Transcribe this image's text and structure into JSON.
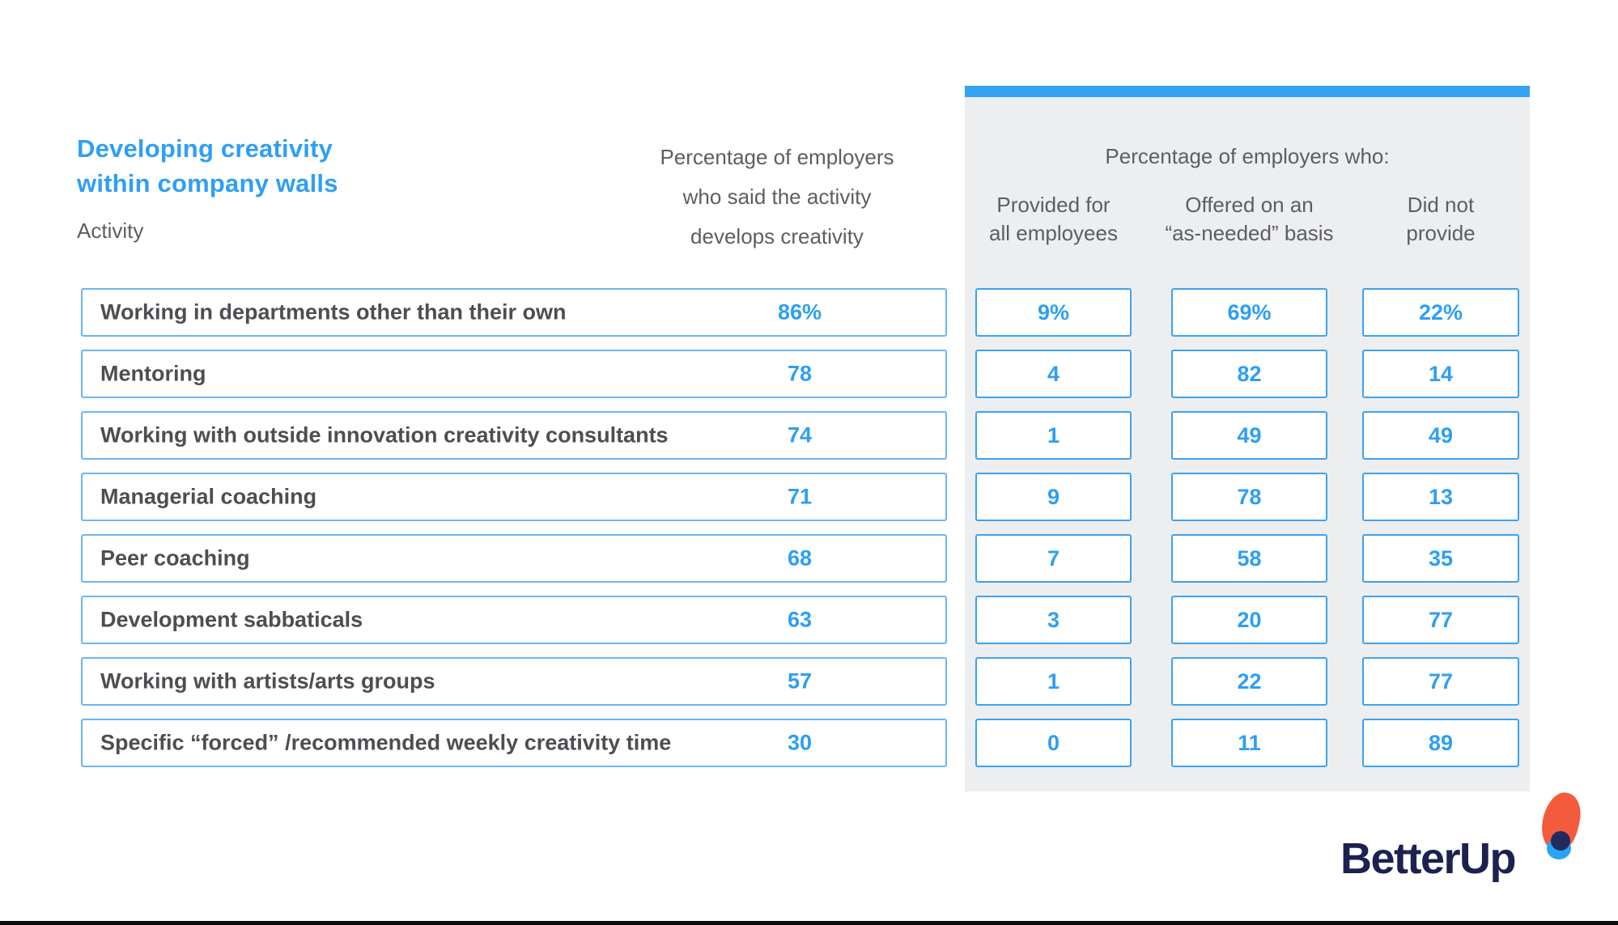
{
  "title": {
    "line1": "Developing creativity",
    "line2": "within company walls"
  },
  "labels": {
    "activity": "Activity"
  },
  "develops_header": {
    "line1": "Percentage of employers",
    "line2": "who said the activity",
    "line3": "develops creativity"
  },
  "panel": {
    "header": "Percentage of employers who:",
    "columns": [
      {
        "line1": "Provided for",
        "line2": "all employees"
      },
      {
        "line1": "Offered on an",
        "line2": "“as-needed” basis"
      },
      {
        "line1": "Did not",
        "line2": "provide"
      }
    ]
  },
  "rows": [
    {
      "activity": "Working in departments other than their own",
      "develops": "86%",
      "provided": "9%",
      "offered": "69%",
      "not_provided": "22%"
    },
    {
      "activity": "Mentoring",
      "develops": "78",
      "provided": "4",
      "offered": "82",
      "not_provided": "14"
    },
    {
      "activity": "Working with outside innovation creativity consultants",
      "develops": "74",
      "provided": "1",
      "offered": "49",
      "not_provided": "49"
    },
    {
      "activity": "Managerial coaching",
      "develops": "71",
      "provided": "9",
      "offered": "78",
      "not_provided": "13"
    },
    {
      "activity": "Peer coaching",
      "develops": "68",
      "provided": "7",
      "offered": "58",
      "not_provided": "35"
    },
    {
      "activity": "Development sabbaticals",
      "develops": "63",
      "provided": "3",
      "offered": "20",
      "not_provided": "77"
    },
    {
      "activity": "Working with artists/arts groups",
      "develops": "57",
      "provided": "1",
      "offered": "22",
      "not_provided": "77"
    },
    {
      "activity": "Specific “forced” /recommended weekly creativity time",
      "develops": "30",
      "provided": "0",
      "offered": "11",
      "not_provided": "89"
    }
  ],
  "logo": {
    "text": "BetterUp"
  },
  "colors": {
    "accent_blue": "#2f9ff2",
    "panel_top_bar": "#35a2f3",
    "panel_bg": "#edeef0",
    "row_border": "#6ab6f4",
    "cell_border": "#3da2f0",
    "header_gray": "#5d5e63",
    "activity_text": "#4d4e52",
    "logo_navy": "#1b2151",
    "logo_orange": "#f45b3d",
    "logo_dot_blue": "#29a4f5"
  },
  "chart_data": {
    "type": "table",
    "title": "Developing creativity within company walls",
    "categories": [
      "Working in departments other than their own",
      "Mentoring",
      "Working with outside innovation creativity consultants",
      "Managerial coaching",
      "Peer coaching",
      "Development sabbaticals",
      "Working with artists/arts groups",
      "Specific “forced” /recommended weekly creativity time"
    ],
    "series": [
      {
        "name": "Percentage of employers who said the activity develops creativity",
        "values": [
          86,
          78,
          74,
          71,
          68,
          63,
          57,
          30
        ]
      },
      {
        "name": "Provided for all employees",
        "values": [
          9,
          4,
          1,
          9,
          7,
          3,
          1,
          0
        ]
      },
      {
        "name": "Offered on an “as-needed” basis",
        "values": [
          69,
          82,
          49,
          78,
          58,
          20,
          22,
          11
        ]
      },
      {
        "name": "Did not provide",
        "values": [
          22,
          14,
          49,
          13,
          35,
          77,
          77,
          89
        ]
      }
    ],
    "units": "percent"
  }
}
